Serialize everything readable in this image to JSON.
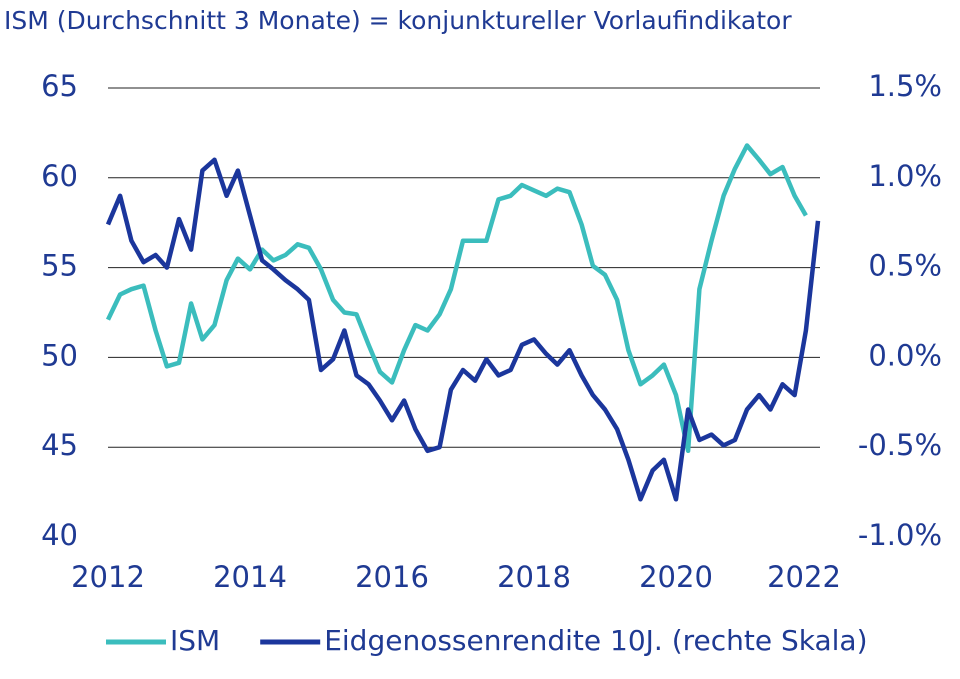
{
  "chart_data": {
    "type": "line",
    "title": "ISM (Durchschnitt 3 Monate) = konjunktureller Vorlaufindikator",
    "x": [
      2012,
      2012.17,
      2012.33,
      2012.5,
      2012.67,
      2012.83,
      2013,
      2013.17,
      2013.33,
      2013.5,
      2013.67,
      2013.83,
      2014,
      2014.17,
      2014.33,
      2014.5,
      2014.67,
      2014.83,
      2015,
      2015.17,
      2015.33,
      2015.5,
      2015.67,
      2015.83,
      2016,
      2016.17,
      2016.33,
      2016.5,
      2016.67,
      2016.83,
      2017,
      2017.17,
      2017.33,
      2017.5,
      2017.67,
      2017.83,
      2018,
      2018.17,
      2018.33,
      2018.5,
      2018.67,
      2018.83,
      2019,
      2019.17,
      2019.33,
      2019.5,
      2019.67,
      2019.83,
      2020,
      2020.17,
      2020.33,
      2020.5,
      2020.67,
      2020.83,
      2021,
      2021.17,
      2021.33,
      2021.5,
      2021.67,
      2021.83,
      2022
    ],
    "series": [
      {
        "name": "ISM",
        "color": "#3bbdbd",
        "values": [
          52.1,
          53.5,
          53.8,
          54.0,
          51.5,
          49.5,
          49.7,
          53.0,
          51.0,
          51.8,
          54.3,
          55.5,
          54.9,
          56.0,
          55.4,
          55.7,
          56.3,
          56.1,
          54.9,
          53.2,
          52.5,
          52.4,
          50.7,
          49.2,
          48.6,
          50.4,
          51.8,
          51.5,
          52.4,
          53.8,
          56.5,
          56.5,
          56.5,
          58.8,
          59.0,
          59.6,
          59.3,
          59.0,
          59.4,
          59.2,
          57.4,
          55.1,
          54.6,
          53.2,
          50.4,
          48.5,
          49.0,
          49.6,
          47.9,
          44.8,
          53.8,
          56.5,
          59.0,
          60.5,
          61.8,
          61.0,
          60.2,
          60.6,
          59.0,
          57.9,
          null
        ]
      },
      {
        "name": "Eidgenossenrendite 10J. (rechte Skala)",
        "color": "#1b369c",
        "axis": "y2",
        "values": [
          0.74,
          0.9,
          0.65,
          0.53,
          0.57,
          0.5,
          0.77,
          0.6,
          1.04,
          1.1,
          0.9,
          1.04,
          0.79,
          0.54,
          0.49,
          0.43,
          0.38,
          0.32,
          -0.07,
          -0.01,
          0.15,
          -0.1,
          -0.15,
          -0.24,
          -0.35,
          -0.24,
          -0.4,
          -0.52,
          -0.5,
          -0.18,
          -0.07,
          -0.13,
          -0.01,
          -0.1,
          -0.07,
          0.07,
          0.1,
          0.02,
          -0.04,
          0.04,
          -0.1,
          -0.21,
          -0.29,
          -0.4,
          -0.57,
          -0.79,
          -0.63,
          -0.57,
          -0.79,
          -0.29,
          -0.46,
          -0.43,
          -0.49,
          -0.46,
          -0.29,
          -0.21,
          -0.29,
          -0.15,
          -0.21,
          0.15,
          0.76
        ]
      }
    ],
    "xlim": [
      2012,
      2022
    ],
    "xticks": [
      2012,
      2014,
      2016,
      2018,
      2020,
      2022
    ],
    "ylim": [
      40,
      65
    ],
    "yticks": [
      40,
      45,
      50,
      55,
      60,
      65
    ],
    "y2lim": [
      -1.0,
      1.5
    ],
    "y2ticks": [
      {
        "value": -1.0,
        "label": "-1.0%"
      },
      {
        "value": -0.5,
        "label": "-0.5%"
      },
      {
        "value": 0,
        "label": "0.0%"
      },
      {
        "value": 0.5,
        "label": "0.5%"
      },
      {
        "value": 1.0,
        "label": "1.0%"
      },
      {
        "value": 1.5,
        "label": "1.5%"
      }
    ],
    "grid": true,
    "legend": "bottom"
  }
}
